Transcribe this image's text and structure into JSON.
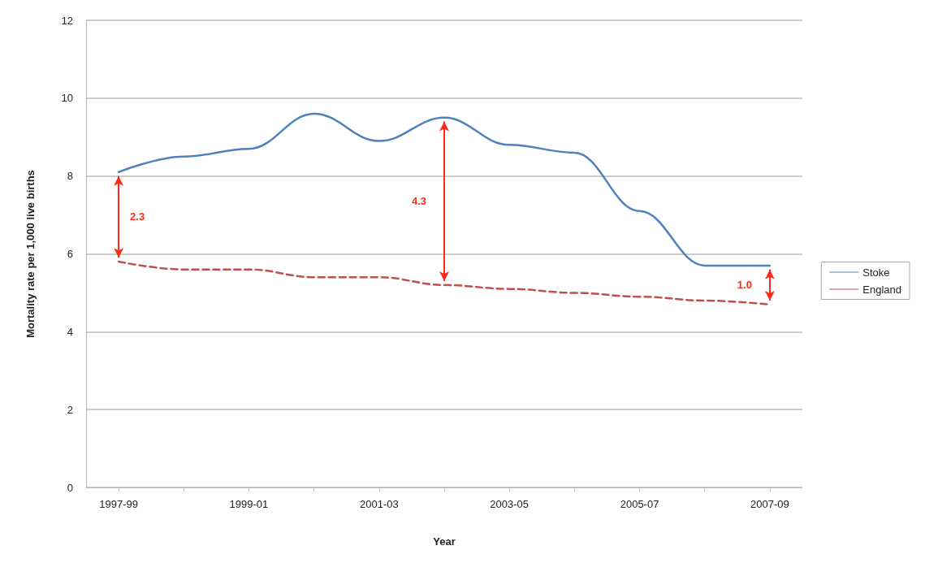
{
  "chart_data": {
    "type": "line",
    "xlabel": "Year",
    "ylabel": "Mortality rate per 1,000 live births",
    "categories": [
      "1997-99",
      null,
      "1999-01",
      null,
      "2001-03",
      null,
      "2003-05",
      null,
      "2005-07",
      null,
      "2007-09"
    ],
    "series": [
      {
        "name": "Stoke",
        "color": "#4f81bd",
        "line_style": "solid",
        "values": [
          8.1,
          8.5,
          8.7,
          9.6,
          8.9,
          9.5,
          8.8,
          8.6,
          7.1,
          5.7,
          5.7
        ]
      },
      {
        "name": "England",
        "color": "#c0504d",
        "line_style": "dashed",
        "values": [
          5.8,
          5.6,
          5.6,
          5.4,
          5.4,
          5.2,
          5.1,
          5.0,
          4.9,
          4.8,
          4.7
        ]
      }
    ],
    "ylim": [
      0,
      12
    ],
    "yticks": [
      0,
      2,
      4,
      6,
      8,
      10,
      12
    ],
    "grid": "y",
    "legend": "right",
    "marker": "none",
    "annotations": [
      "2.3",
      "4.3",
      "1.0"
    ]
  }
}
